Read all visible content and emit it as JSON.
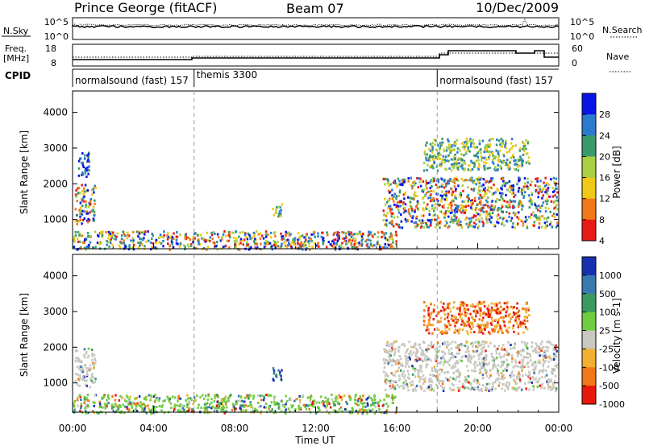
{
  "header": {
    "station": "Prince George (fitACF)",
    "beam": "Beam 07",
    "date": "10/Dec/2009"
  },
  "noise_panel": {
    "left_label": "N.Sky",
    "left_ticks": [
      "10^5",
      "10^0"
    ],
    "right_ticks": [
      "10^5",
      "10^0"
    ],
    "right_label": "N.Search"
  },
  "freq_panel": {
    "left_label_1": "Freq.",
    "left_label_2": "[MHz]",
    "left_ticks": [
      "18",
      "8"
    ],
    "right_ticks": [
      "60",
      "0"
    ],
    "right_label": "Nave"
  },
  "cpid": {
    "label": "CPID",
    "segments": [
      {
        "text": "normalsound (fast) 157",
        "start_hour": 0
      },
      {
        "text": "themis 3300",
        "start_hour": 6
      },
      {
        "text": "normalsound (fast) 157",
        "start_hour": 18
      }
    ]
  },
  "chart_data": [
    {
      "type": "heatmap",
      "ylabel": "Slant Range [km]",
      "ylim": [
        180,
        4600
      ],
      "yticks": [
        "1000",
        "2000",
        "3000",
        "4000"
      ],
      "xlim_hours": [
        0,
        24
      ],
      "colorbar": {
        "label": "Power [dB]",
        "tick_labels": [
          "4",
          "8",
          "12",
          "16",
          "20",
          "24",
          "28"
        ],
        "colors": [
          "#0a14e6",
          "#2a7ad0",
          "#3a9a6a",
          "#a8d040",
          "#f0c818",
          "#f07818",
          "#e81a14"
        ]
      },
      "echo_regions": [
        {
          "t0": 0.1,
          "t1": 1.1,
          "r0": 900,
          "r1": 2000,
          "value_level": "high"
        },
        {
          "t0": 0.2,
          "t1": 0.8,
          "r0": 2200,
          "r1": 2900,
          "value_level": "low"
        },
        {
          "t0": 0.0,
          "t1": 16.0,
          "r0": 180,
          "r1": 700,
          "value_level": "mixed"
        },
        {
          "t0": 9.8,
          "t1": 10.3,
          "r0": 1100,
          "r1": 1500,
          "value_level": "mid"
        },
        {
          "t0": 15.3,
          "t1": 23.9,
          "r0": 800,
          "r1": 2200,
          "value_level": "high"
        },
        {
          "t0": 17.3,
          "t1": 22.5,
          "r0": 2400,
          "r1": 3300,
          "value_level": "mid"
        }
      ]
    },
    {
      "type": "heatmap",
      "ylabel": "Slant Range [km]",
      "ylim": [
        180,
        4600
      ],
      "yticks": [
        "1000",
        "2000",
        "3000",
        "4000"
      ],
      "xticks": [
        "00:00",
        "04:00",
        "08:00",
        "12:00",
        "16:00",
        "20:00",
        "00:00"
      ],
      "xlabel": "Time UT",
      "xlim_hours": [
        0,
        24
      ],
      "colorbar": {
        "label": "Velocity [m s-1]",
        "tick_labels": [
          "1000",
          "500",
          "100",
          "25",
          "-25",
          "-100",
          "-500",
          "-1000"
        ],
        "colors": [
          "#1830b0",
          "#3a78b0",
          "#3a9a60",
          "#70cc40",
          "#c8c8c0",
          "#f0b030",
          "#f07818",
          "#e8180c"
        ]
      },
      "echo_regions": [
        {
          "t0": 0.1,
          "t1": 1.1,
          "r0": 900,
          "r1": 2000,
          "value_level": "low-velocity"
        },
        {
          "t0": 0.0,
          "t1": 16.0,
          "r0": 180,
          "r1": 700,
          "value_level": "mixed"
        },
        {
          "t0": 9.8,
          "t1": 10.3,
          "r0": 1100,
          "r1": 1500,
          "value_level": "positive"
        },
        {
          "t0": 15.3,
          "t1": 23.9,
          "r0": 800,
          "r1": 2200,
          "value_level": "low-velocity"
        },
        {
          "t0": 17.3,
          "t1": 22.5,
          "r0": 2400,
          "r1": 3300,
          "value_level": "negative"
        }
      ]
    }
  ]
}
